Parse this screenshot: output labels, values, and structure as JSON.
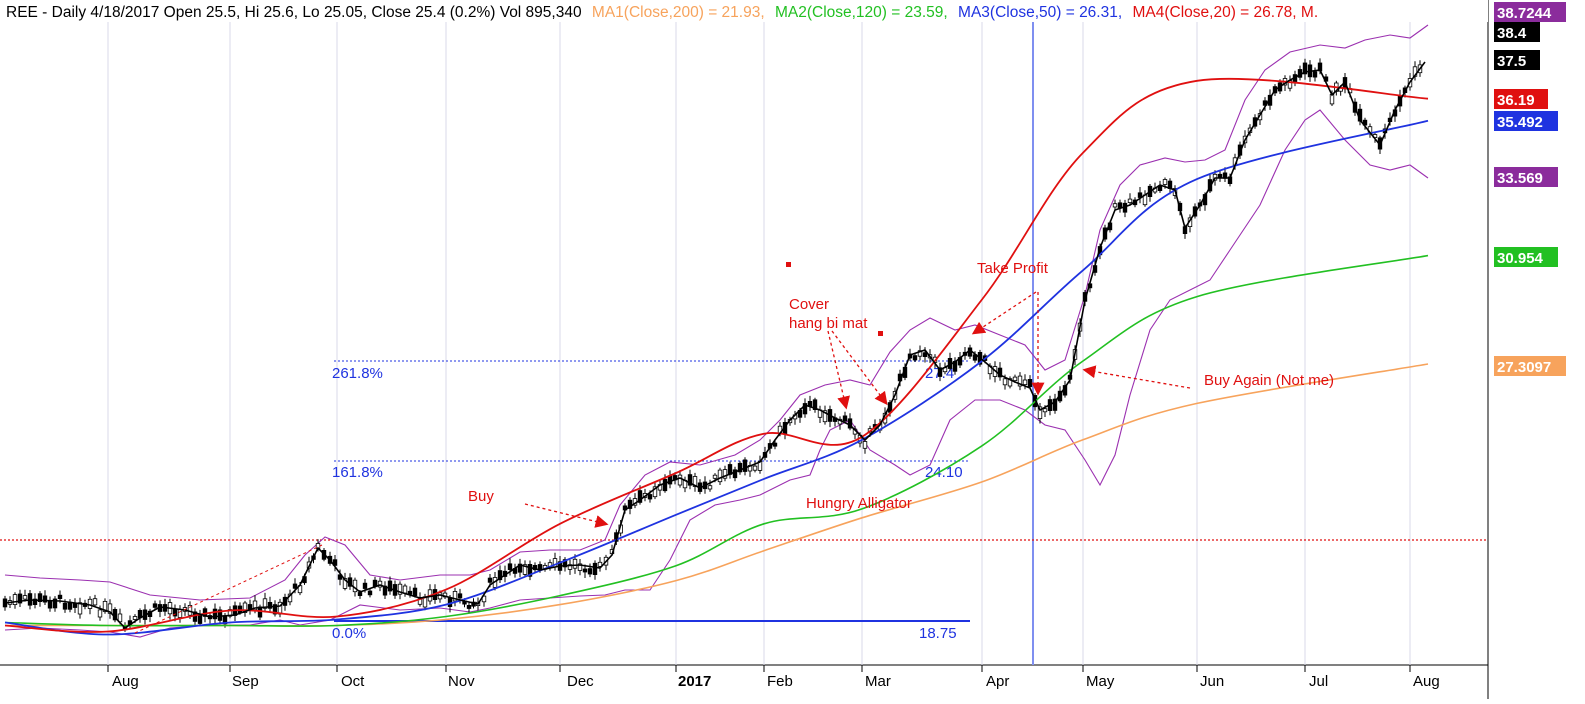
{
  "header": {
    "symbol_info": "REE - Daily 4/18/2017 Open 25.5, Hi 25.6, Lo 25.05, Close 25.4 (0.2%) Vol 895,340",
    "ma1": "MA1(Close,200) = 21.93,",
    "ma2": "MA2(Close,120) = 23.59,",
    "ma3": "MA3(Close,50) = 26.31,",
    "ma4": "MA4(Close,20) = 26.78, M."
  },
  "colors": {
    "ma200": "#f7a35c",
    "ma120": "#22c022",
    "ma50": "#1f33e0",
    "ma20": "#e01010",
    "bollinger": "#9b30b0",
    "price": "#000000",
    "annotation": "#e01010",
    "fib": "#1f33e0"
  },
  "chart_data": {
    "type": "line",
    "title": "REE - Daily",
    "x_ticks": [
      "Aug",
      "Sep",
      "Oct",
      "Nov",
      "Dec",
      "2017",
      "Feb",
      "Mar",
      "Apr",
      "May",
      "Jun",
      "Jul",
      "Aug"
    ],
    "y_axis_labels": [
      {
        "value": 38.7244,
        "label": "38.7244",
        "color": "#8b2c9c"
      },
      {
        "value": 38.4,
        "label": "38.4",
        "color": "#000000"
      },
      {
        "value": 37.5,
        "label": "37.5",
        "color": "#000000"
      },
      {
        "value": 36.19,
        "label": "36.19",
        "color": "#e01010"
      },
      {
        "value": 35.492,
        "label": "35.492",
        "color": "#1f33e0"
      },
      {
        "value": 33.569,
        "label": "33.569",
        "color": "#8b2c9c"
      },
      {
        "value": 30.954,
        "label": "30.954",
        "color": "#22c022"
      },
      {
        "value": 27.3097,
        "label": "27.3097",
        "color": "#f7a35c"
      }
    ],
    "series": [
      {
        "name": "MA1(Close,200)",
        "values": [
          18.6,
          18.6,
          18.6,
          18.6,
          18.8,
          19.3,
          20.1,
          21.1,
          22.2,
          23.4,
          24.8,
          26.0,
          27.3
        ]
      },
      {
        "name": "MA2(Close,120)",
        "values": [
          18.7,
          18.6,
          18.6,
          18.6,
          18.9,
          19.6,
          20.6,
          22.0,
          22.5,
          24.6,
          27.4,
          29.6,
          31.0
        ]
      },
      {
        "name": "MA3(Close,50)",
        "values": [
          18.7,
          18.3,
          18.7,
          18.8,
          19.3,
          20.7,
          22.3,
          23.5,
          24.8,
          27.4,
          30.5,
          33.5,
          35.5
        ]
      },
      {
        "name": "MA4(Close,20)",
        "values": [
          18.6,
          18.4,
          19.1,
          18.9,
          19.8,
          22.0,
          23.7,
          25.0,
          24.9,
          29.5,
          34.4,
          36.8,
          36.2
        ]
      }
    ],
    "fibonacci": [
      {
        "label": "261.8%",
        "price_label": "27.4"
      },
      {
        "label": "161.8%",
        "price_label": "24.10"
      },
      {
        "label": "0.0%",
        "price_label": "18.75"
      }
    ],
    "annotations": [
      "Buy",
      "Cover",
      "hang bi mat",
      "Take Profit",
      "Hungry Alligator",
      "Buy Again (Not me)"
    ],
    "grid": true
  }
}
